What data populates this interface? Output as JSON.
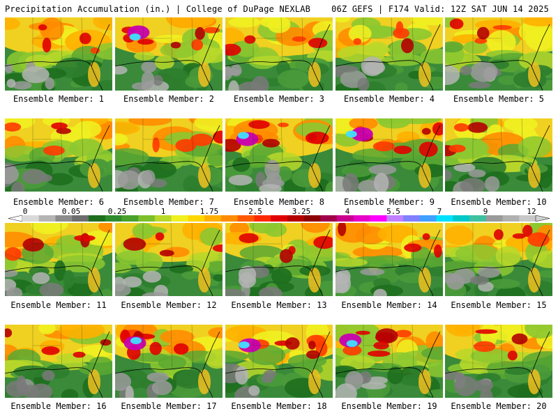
{
  "header": {
    "left": "Precipitation Accumulation (in.) | College of DuPage NEXLAB",
    "right": "06Z GEFS | F174 Valid: 12Z SAT JUN 14 2025"
  },
  "member_prefix": "Ensemble Member:",
  "members": [
    {
      "label": "Ensemble Member: 1",
      "id": 1
    },
    {
      "label": "Ensemble Member: 2",
      "id": 2
    },
    {
      "label": "Ensemble Member: 3",
      "id": 3
    },
    {
      "label": "Ensemble Member: 4",
      "id": 4
    },
    {
      "label": "Ensemble Member: 5",
      "id": 5
    },
    {
      "label": "Ensemble Member: 6",
      "id": 6
    },
    {
      "label": "Ensemble Member: 7",
      "id": 7
    },
    {
      "label": "Ensemble Member: 8",
      "id": 8
    },
    {
      "label": "Ensemble Member: 9",
      "id": 9
    },
    {
      "label": "Ensemble Member: 10",
      "id": 10
    },
    {
      "label": "Ensemble Member: 11",
      "id": 11
    },
    {
      "label": "Ensemble Member: 12",
      "id": 12
    },
    {
      "label": "Ensemble Member: 13",
      "id": 13
    },
    {
      "label": "Ensemble Member: 14",
      "id": 14
    },
    {
      "label": "Ensemble Member: 15",
      "id": 15
    },
    {
      "label": "Ensemble Member: 16",
      "id": 16
    },
    {
      "label": "Ensemble Member: 17",
      "id": 17
    },
    {
      "label": "Ensemble Member: 18",
      "id": 18
    },
    {
      "label": "Ensemble Member: 19",
      "id": 19
    },
    {
      "label": "Ensemble Member: 20",
      "id": 20
    }
  ],
  "colorbar": {
    "tick_labels": [
      "0",
      "0.05",
      "0.25",
      "1",
      "1.75",
      "2.5",
      "3.25",
      "4",
      "5.5",
      "7",
      "9",
      "12"
    ],
    "colors": [
      "#d9d9d9",
      "#b4b4b4",
      "#8c8c8c",
      "#6e6e6e",
      "#1e6e1e",
      "#2e8b2e",
      "#4aa02c",
      "#7cbf2a",
      "#b8d82a",
      "#f0f020",
      "#ffd700",
      "#ffb000",
      "#ff8c00",
      "#ff5a00",
      "#ff2a00",
      "#e00000",
      "#b40000",
      "#8c0000",
      "#a0004a",
      "#c8008c",
      "#e600c8",
      "#ff00ff",
      "#c080ff",
      "#8080ff",
      "#40a0ff",
      "#00e0ff",
      "#00c8c8",
      "#40c0a0",
      "#9a9a9a",
      "#b0b0b0",
      "#c8c8c8"
    ]
  }
}
